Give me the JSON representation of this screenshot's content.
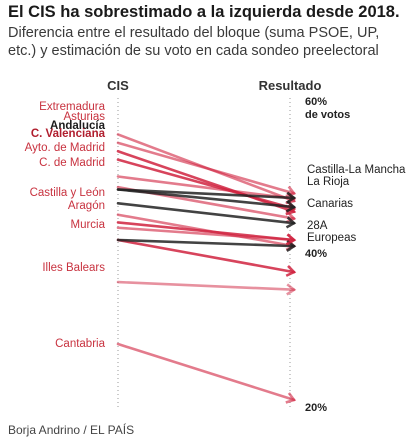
{
  "title": "El CIS ha sobrestimado a la izquierda desde 2018.",
  "subtitle": "Diferencia entre el resultado del bloque (suma PSOE, UP, etc.) y estimación de su voto en cada sondeo preelectoral",
  "source": "Borja Andrino / EL PAÍS",
  "chart_data": {
    "type": "slope",
    "left_label": "CIS",
    "right_label": "Resultado",
    "ylim": [
      20,
      60
    ],
    "y_ticks": [
      {
        "value": 60,
        "label": "60%",
        "sublabel": "de votos",
        "color": "#222222"
      },
      {
        "value": 40,
        "label": "40%",
        "sublabel": "",
        "color": "#aaaaaa"
      },
      {
        "value": 20,
        "label": "20%",
        "sublabel": "",
        "color": "#222222"
      }
    ],
    "colors": {
      "overestimate": "#d0233f",
      "neutral": "#222222"
    },
    "left_labels": [
      {
        "text": "Extremadura",
        "bold": false,
        "color": "#c8323f"
      },
      {
        "text": "Asturias",
        "bold": false,
        "color": "#c8323f"
      },
      {
        "text": "Andalucía",
        "bold": true,
        "color": "#1c1c1c"
      },
      {
        "text": "C. Valenciana",
        "bold": true,
        "color": "#b01e2e"
      },
      {
        "text": "Ayto. de Madrid",
        "bold": false,
        "color": "#c8323f"
      },
      {
        "text": "C. de Madrid",
        "bold": false,
        "color": "#c8323f"
      },
      {
        "text": "Castilla y León",
        "bold": false,
        "color": "#c8323f"
      },
      {
        "text": "Aragón",
        "bold": false,
        "color": "#c8323f"
      },
      {
        "text": "Murcia",
        "bold": false,
        "color": "#c8323f"
      },
      {
        "text": "Illes Balears",
        "bold": false,
        "color": "#c8323f"
      },
      {
        "text": "Cantabria",
        "bold": false,
        "color": "#c8323f"
      }
    ],
    "right_labels": [
      {
        "text": "Castilla-La Mancha"
      },
      {
        "text": "La Rioja"
      },
      {
        "text": "Canarias"
      },
      {
        "text": "28A"
      },
      {
        "text": "Europeas"
      }
    ],
    "series": [
      {
        "name": "Extremadura",
        "cis": 55.5,
        "result": 46.8,
        "color": "#d0233f",
        "opacity": 0.6
      },
      {
        "name": "Asturias",
        "cis": 54.4,
        "result": 47.8,
        "color": "#d0233f",
        "opacity": 0.6
      },
      {
        "name": "Andalucía",
        "cis": 53.3,
        "result": 45.4,
        "color": "#d0233f",
        "opacity": 0.85
      },
      {
        "name": "C. Valenciana",
        "cis": 52.2,
        "result": 45.8,
        "color": "#d0233f",
        "opacity": 0.85
      },
      {
        "name": "Ayto. de Madrid",
        "cis": 50.0,
        "result": 47.1,
        "color": "#d0233f",
        "opacity": 0.6
      },
      {
        "name": "C. de Madrid",
        "cis": 48.6,
        "result": 44.5,
        "color": "#d0233f",
        "opacity": 0.6
      },
      {
        "name": "Castilla-La Mancha",
        "cis": 48.3,
        "result": 47.2,
        "color": "#222222",
        "opacity": 0.85
      },
      {
        "name": "La Rioja",
        "cis": 48.3,
        "result": 46.0,
        "color": "#222222",
        "opacity": 0.85
      },
      {
        "name": "Castilla y León",
        "cis": 45.0,
        "result": 40.9,
        "color": "#d0233f",
        "opacity": 0.6
      },
      {
        "name": "Canarias",
        "cis": 46.5,
        "result": 43.9,
        "color": "#222222",
        "opacity": 0.85
      },
      {
        "name": "Aragón",
        "cis": 43.3,
        "result": 41.7,
        "color": "#d0233f",
        "opacity": 0.6
      },
      {
        "name": "Murcia",
        "cis": 41.7,
        "result": 37.5,
        "color": "#d0233f",
        "opacity": 0.85
      },
      {
        "name": "28A",
        "cis": 41.7,
        "result": 40.9,
        "color": "#222222",
        "opacity": 0.85
      },
      {
        "name": "Europeas",
        "cis": 44.0,
        "result": 41.7,
        "color": "#d0233f",
        "opacity": 0.85
      },
      {
        "name": "Illes Balears",
        "cis": 36.2,
        "result": 35.2,
        "color": "#d0233f",
        "opacity": 0.5
      },
      {
        "name": "Cantabria",
        "cis": 28.1,
        "result": 20.8,
        "color": "#d0233f",
        "opacity": 0.6
      }
    ]
  }
}
